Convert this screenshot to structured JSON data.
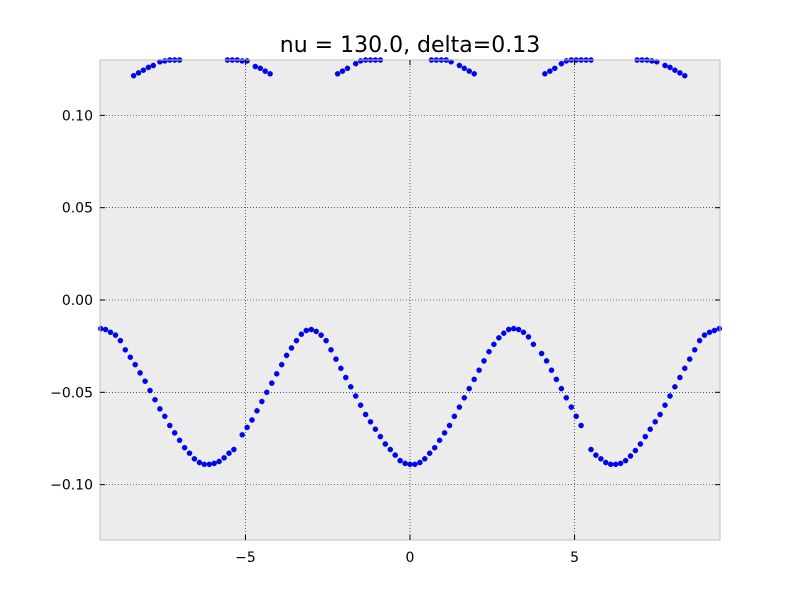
{
  "chart_data": {
    "type": "scatter",
    "title": "nu = 130.0, delta=0.13",
    "xlabel": "",
    "ylabel": "",
    "xlim": [
      -9.42,
      9.42
    ],
    "ylim": [
      -0.13,
      0.13
    ],
    "x_ticks": [
      -5,
      0,
      5
    ],
    "x_tick_labels": [
      "−5",
      "0",
      "5"
    ],
    "y_ticks": [
      -0.1,
      -0.05,
      0.0,
      0.05,
      0.1
    ],
    "y_tick_labels": [
      "−0.10",
      "−0.05",
      "0.00",
      "0.05",
      "0.10"
    ],
    "grid": true,
    "grid_style": "dotted",
    "background_color": "#ececec",
    "marker_color": "#0000ff",
    "series": [
      {
        "values": [
          [
            -9.4,
            -0.0155
          ],
          [
            -9.25,
            -0.016
          ],
          [
            -9.1,
            -0.0175
          ],
          [
            -8.95,
            -0.019
          ],
          [
            -8.8,
            -0.022
          ],
          [
            -8.65,
            -0.027
          ],
          [
            -8.5,
            -0.031
          ],
          [
            -8.35,
            -0.035
          ],
          [
            -8.2,
            -0.0395
          ],
          [
            -8.05,
            -0.044
          ],
          [
            -7.9,
            -0.049
          ],
          [
            -7.75,
            -0.054
          ],
          [
            -7.6,
            -0.059
          ],
          [
            -7.45,
            -0.063
          ],
          [
            -7.3,
            -0.068
          ],
          [
            -7.15,
            -0.072
          ],
          [
            -7.0,
            -0.076
          ],
          [
            -6.85,
            -0.08
          ],
          [
            -6.7,
            -0.083
          ],
          [
            -6.55,
            -0.086
          ],
          [
            -6.4,
            -0.088
          ],
          [
            -6.25,
            -0.089
          ],
          [
            -6.1,
            -0.089
          ],
          [
            -5.95,
            -0.0885
          ],
          [
            -5.8,
            -0.0875
          ],
          [
            -5.65,
            -0.0855
          ],
          [
            -5.5,
            -0.083
          ],
          [
            -5.35,
            -0.081
          ],
          [
            -5.1,
            -0.073
          ],
          [
            -4.95,
            -0.069
          ],
          [
            -4.8,
            -0.065
          ],
          [
            -4.65,
            -0.06
          ],
          [
            -4.5,
            -0.055
          ],
          [
            -4.35,
            -0.05
          ],
          [
            -4.2,
            -0.045
          ],
          [
            -4.05,
            -0.04
          ],
          [
            -3.9,
            -0.035
          ],
          [
            -3.75,
            -0.03
          ],
          [
            -3.6,
            -0.026
          ],
          [
            -3.45,
            -0.022
          ],
          [
            -3.3,
            -0.0185
          ],
          [
            -3.15,
            -0.0165
          ],
          [
            -3.0,
            -0.016
          ],
          [
            -2.85,
            -0.017
          ],
          [
            -2.7,
            -0.019
          ],
          [
            -2.55,
            -0.022
          ],
          [
            -2.4,
            -0.027
          ],
          [
            -2.25,
            -0.032
          ],
          [
            -2.1,
            -0.037
          ],
          [
            -1.95,
            -0.042
          ],
          [
            -1.8,
            -0.047
          ],
          [
            -1.65,
            -0.052
          ],
          [
            -1.5,
            -0.057
          ],
          [
            -1.35,
            -0.062
          ],
          [
            -1.2,
            -0.066
          ],
          [
            -1.05,
            -0.07
          ],
          [
            -0.9,
            -0.074
          ],
          [
            -0.75,
            -0.078
          ],
          [
            -0.6,
            -0.081
          ],
          [
            -0.45,
            -0.084
          ],
          [
            -0.3,
            -0.087
          ],
          [
            -0.15,
            -0.0885
          ],
          [
            0.0,
            -0.089
          ],
          [
            0.15,
            -0.089
          ],
          [
            0.3,
            -0.088
          ],
          [
            0.45,
            -0.086
          ],
          [
            0.6,
            -0.083
          ],
          [
            0.75,
            -0.08
          ],
          [
            0.9,
            -0.076
          ],
          [
            1.05,
            -0.072
          ],
          [
            1.2,
            -0.068
          ],
          [
            1.35,
            -0.063
          ],
          [
            1.5,
            -0.058
          ],
          [
            1.65,
            -0.053
          ],
          [
            1.8,
            -0.048
          ],
          [
            1.95,
            -0.043
          ],
          [
            2.1,
            -0.038
          ],
          [
            2.25,
            -0.033
          ],
          [
            2.4,
            -0.028
          ],
          [
            2.55,
            -0.024
          ],
          [
            2.7,
            -0.0205
          ],
          [
            2.85,
            -0.018
          ],
          [
            3.0,
            -0.016
          ],
          [
            3.15,
            -0.0155
          ],
          [
            3.3,
            -0.016
          ],
          [
            3.45,
            -0.0175
          ],
          [
            3.6,
            -0.02
          ],
          [
            3.75,
            -0.024
          ],
          [
            4.0,
            -0.029
          ],
          [
            4.15,
            -0.033
          ],
          [
            4.3,
            -0.038
          ],
          [
            4.45,
            -0.043
          ],
          [
            4.6,
            -0.048
          ],
          [
            4.75,
            -0.053
          ],
          [
            4.9,
            -0.058
          ],
          [
            5.05,
            -0.063
          ],
          [
            5.2,
            -0.068
          ],
          [
            5.5,
            -0.081
          ],
          [
            5.65,
            -0.084
          ],
          [
            5.8,
            -0.086
          ],
          [
            5.95,
            -0.088
          ],
          [
            6.1,
            -0.089
          ],
          [
            6.25,
            -0.089
          ],
          [
            6.4,
            -0.0885
          ],
          [
            6.55,
            -0.087
          ],
          [
            6.7,
            -0.0845
          ],
          [
            6.85,
            -0.0815
          ],
          [
            7.0,
            -0.078
          ],
          [
            7.15,
            -0.074
          ],
          [
            7.3,
            -0.07
          ],
          [
            7.45,
            -0.066
          ],
          [
            7.6,
            -0.062
          ],
          [
            7.75,
            -0.057
          ],
          [
            7.9,
            -0.052
          ],
          [
            8.05,
            -0.047
          ],
          [
            8.2,
            -0.042
          ],
          [
            8.35,
            -0.037
          ],
          [
            8.5,
            -0.032
          ],
          [
            8.65,
            -0.027
          ],
          [
            8.8,
            -0.022
          ],
          [
            8.95,
            -0.019
          ],
          [
            9.1,
            -0.0175
          ],
          [
            9.25,
            -0.0165
          ],
          [
            9.4,
            -0.0155
          ],
          [
            -8.4,
            0.1215
          ],
          [
            -8.25,
            0.123
          ],
          [
            -8.1,
            0.1245
          ],
          [
            -7.95,
            0.126
          ],
          [
            -7.8,
            0.127
          ],
          [
            -7.6,
            0.129
          ],
          [
            -7.45,
            0.1295
          ],
          [
            -7.3,
            0.13
          ],
          [
            -7.15,
            0.13
          ],
          [
            -7.0,
            0.13
          ],
          [
            -5.55,
            0.13
          ],
          [
            -5.4,
            0.13
          ],
          [
            -5.25,
            0.13
          ],
          [
            -5.1,
            0.1295
          ],
          [
            -4.95,
            0.1295
          ],
          [
            -4.7,
            0.1265
          ],
          [
            -4.55,
            0.1255
          ],
          [
            -4.4,
            0.124
          ],
          [
            -4.25,
            0.1225
          ],
          [
            -2.2,
            0.1225
          ],
          [
            -2.05,
            0.124
          ],
          [
            -1.9,
            0.1255
          ],
          [
            -1.65,
            0.128
          ],
          [
            -1.5,
            0.1295
          ],
          [
            -1.35,
            0.13
          ],
          [
            -1.2,
            0.13
          ],
          [
            -1.05,
            0.13
          ],
          [
            -0.9,
            0.13
          ],
          [
            0.65,
            0.13
          ],
          [
            0.8,
            0.13
          ],
          [
            0.95,
            0.13
          ],
          [
            1.1,
            0.13
          ],
          [
            1.25,
            0.129
          ],
          [
            1.5,
            0.127
          ],
          [
            1.65,
            0.1255
          ],
          [
            1.8,
            0.124
          ],
          [
            1.95,
            0.1225
          ],
          [
            4.1,
            0.1225
          ],
          [
            4.25,
            0.124
          ],
          [
            4.4,
            0.1255
          ],
          [
            4.6,
            0.128
          ],
          [
            4.75,
            0.1295
          ],
          [
            4.9,
            0.13
          ],
          [
            5.05,
            0.13
          ],
          [
            5.2,
            0.13
          ],
          [
            5.35,
            0.13
          ],
          [
            5.5,
            0.13
          ],
          [
            6.9,
            0.13
          ],
          [
            7.05,
            0.13
          ],
          [
            7.2,
            0.13
          ],
          [
            7.35,
            0.1295
          ],
          [
            7.5,
            0.129
          ],
          [
            7.75,
            0.127
          ],
          [
            7.9,
            0.126
          ],
          [
            8.05,
            0.1245
          ],
          [
            8.2,
            0.123
          ],
          [
            8.35,
            0.1215
          ]
        ]
      }
    ]
  }
}
